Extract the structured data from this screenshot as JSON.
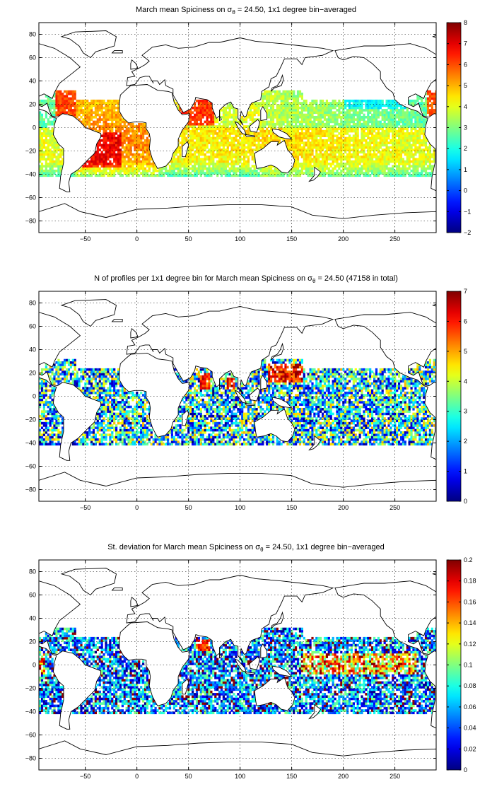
{
  "panels": [
    {
      "title_pre": "March mean Spiciness on σ",
      "title_sub": "θ",
      "title_post": " = 24.50, 1x1 degree bin−averaged",
      "colorbar_ticks": [
        "−2",
        "−1",
        "0",
        "1",
        "2",
        "3",
        "4",
        "5",
        "6",
        "7",
        "8"
      ],
      "clim": [
        -2,
        8
      ],
      "field": "spice"
    },
    {
      "title_pre": "N of profiles per 1x1 degree bin for March mean Spiciness on σ",
      "title_sub": "θ",
      "title_post": " = 24.50 (47158 in total)",
      "colorbar_ticks": [
        "0",
        "1",
        "2",
        "3",
        "4",
        "5",
        "6",
        "7"
      ],
      "clim": [
        0,
        7
      ],
      "field": "count"
    },
    {
      "title_pre": "St. deviation for March mean Spiciness on σ",
      "title_sub": "θ",
      "title_post": " = 24.50, 1x1 degree bin−averaged",
      "colorbar_ticks": [
        "0",
        "0.02",
        "0.04",
        "0.06",
        "0.08",
        "0.1",
        "0.12",
        "0.14",
        "0.16",
        "0.18",
        "0.2"
      ],
      "clim": [
        0,
        0.2
      ],
      "field": "std"
    }
  ],
  "axes": {
    "xticks": [
      "−50",
      "0",
      "50",
      "100",
      "150",
      "200",
      "250"
    ],
    "xtick_values": [
      -50,
      0,
      50,
      100,
      150,
      200,
      250
    ],
    "yticks": [
      "80",
      "60",
      "40",
      "20",
      "0",
      "−20",
      "−40",
      "−60",
      "−80"
    ],
    "ytick_values": [
      80,
      60,
      40,
      20,
      0,
      -20,
      -40,
      -60,
      -80
    ],
    "xlim": [
      -95,
      290
    ],
    "ylim": [
      -90,
      90
    ]
  },
  "colormap": "jet"
}
